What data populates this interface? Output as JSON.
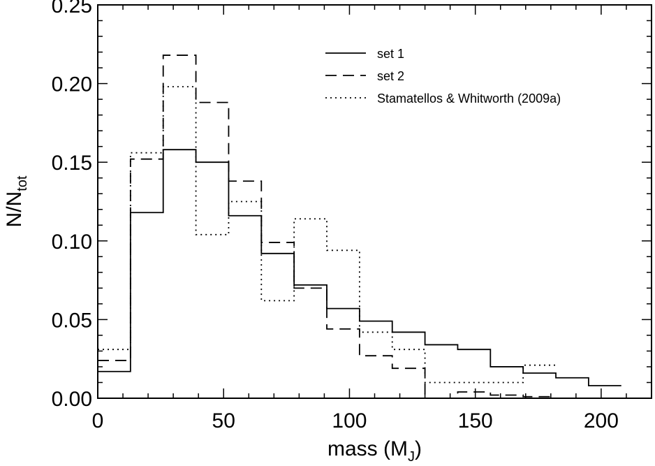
{
  "chart_data": {
    "type": "histogram",
    "xlabel": "mass (M",
    "xlabel_sub": "J",
    "xlabel_close": ")",
    "ylabel": "N/N",
    "ylabel_sub": "tot",
    "xlim": [
      0,
      220
    ],
    "ylim": [
      0.0,
      0.25
    ],
    "x_ticks": [
      0,
      50,
      100,
      150,
      200
    ],
    "x_tick_labels": [
      "0",
      "50",
      "100",
      "150",
      "200"
    ],
    "y_ticks": [
      0.0,
      0.05,
      0.1,
      0.15,
      0.2,
      0.25
    ],
    "y_tick_labels": [
      "0.00",
      "0.05",
      "0.10",
      "0.15",
      "0.20",
      "0.25"
    ],
    "legend_position": "top-right",
    "series": [
      {
        "name": "set 1",
        "style": "solid",
        "bin_edges": [
          0,
          13,
          26,
          39,
          52,
          65,
          78,
          91,
          104,
          117,
          130,
          143,
          156,
          169,
          182,
          195,
          208
        ],
        "values": [
          0.017,
          0.118,
          0.158,
          0.15,
          0.116,
          0.092,
          0.072,
          0.057,
          0.049,
          0.042,
          0.034,
          0.031,
          0.02,
          0.016,
          0.013,
          0.008
        ]
      },
      {
        "name": "set 2",
        "style": "dashed",
        "bin_edges": [
          0,
          13,
          26,
          39,
          52,
          65,
          78,
          91,
          104,
          117,
          130,
          143,
          156,
          169,
          182
        ],
        "values": [
          0.024,
          0.152,
          0.218,
          0.188,
          0.138,
          0.099,
          0.07,
          0.044,
          0.027,
          0.019,
          0.0,
          0.004,
          0.002,
          0.001
        ]
      },
      {
        "name": "Stamatellos & Whitworth (2009a)",
        "style": "dotted",
        "bin_edges": [
          0,
          13,
          26,
          39,
          52,
          65,
          78,
          91,
          104,
          117,
          130,
          143,
          156,
          169,
          182
        ],
        "values": [
          0.031,
          0.156,
          0.198,
          0.104,
          0.125,
          0.062,
          0.114,
          0.094,
          0.042,
          0.031,
          0.01,
          0.01,
          0.01,
          0.021
        ]
      }
    ]
  }
}
